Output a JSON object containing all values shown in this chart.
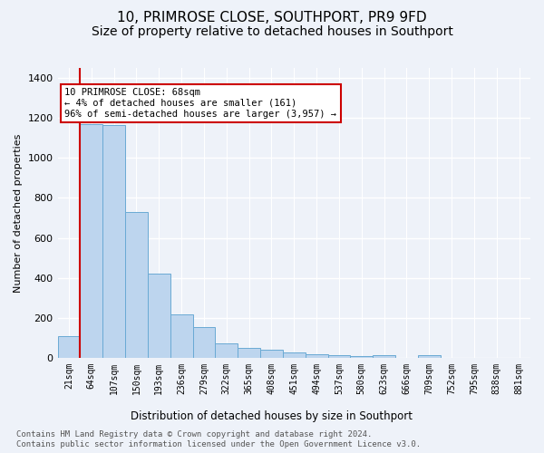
{
  "title": "10, PRIMROSE CLOSE, SOUTHPORT, PR9 9FD",
  "subtitle": "Size of property relative to detached houses in Southport",
  "xlabel": "Distribution of detached houses by size in Southport",
  "ylabel": "Number of detached properties",
  "footer_line1": "Contains HM Land Registry data © Crown copyright and database right 2024.",
  "footer_line2": "Contains public sector information licensed under the Open Government Licence v3.0.",
  "categories": [
    "21sqm",
    "64sqm",
    "107sqm",
    "150sqm",
    "193sqm",
    "236sqm",
    "279sqm",
    "322sqm",
    "365sqm",
    "408sqm",
    "451sqm",
    "494sqm",
    "537sqm",
    "580sqm",
    "623sqm",
    "666sqm",
    "709sqm",
    "752sqm",
    "795sqm",
    "838sqm",
    "881sqm"
  ],
  "bar_values": [
    107,
    1170,
    1165,
    730,
    420,
    215,
    155,
    70,
    50,
    40,
    25,
    18,
    15,
    10,
    15,
    0,
    12,
    0,
    0,
    0,
    0
  ],
  "bar_color": "#bdd5ee",
  "bar_edge_color": "#6aaad4",
  "annotation_line1": "10 PRIMROSE CLOSE: 68sqm",
  "annotation_line2": "← 4% of detached houses are smaller (161)",
  "annotation_line3": "96% of semi-detached houses are larger (3,957) →",
  "vline_x_index": 1,
  "ylim_max": 1450,
  "yticks": [
    0,
    200,
    400,
    600,
    800,
    1000,
    1200,
    1400
  ],
  "bg_color": "#eef2f9",
  "grid_color": "#ffffff",
  "vline_color": "#cc0000",
  "box_edge_color": "#cc0000",
  "title_fontsize": 11,
  "subtitle_fontsize": 10,
  "tick_fontsize": 7,
  "ylabel_fontsize": 8,
  "xlabel_fontsize": 8.5,
  "annot_fontsize": 7.5,
  "footer_fontsize": 6.5
}
